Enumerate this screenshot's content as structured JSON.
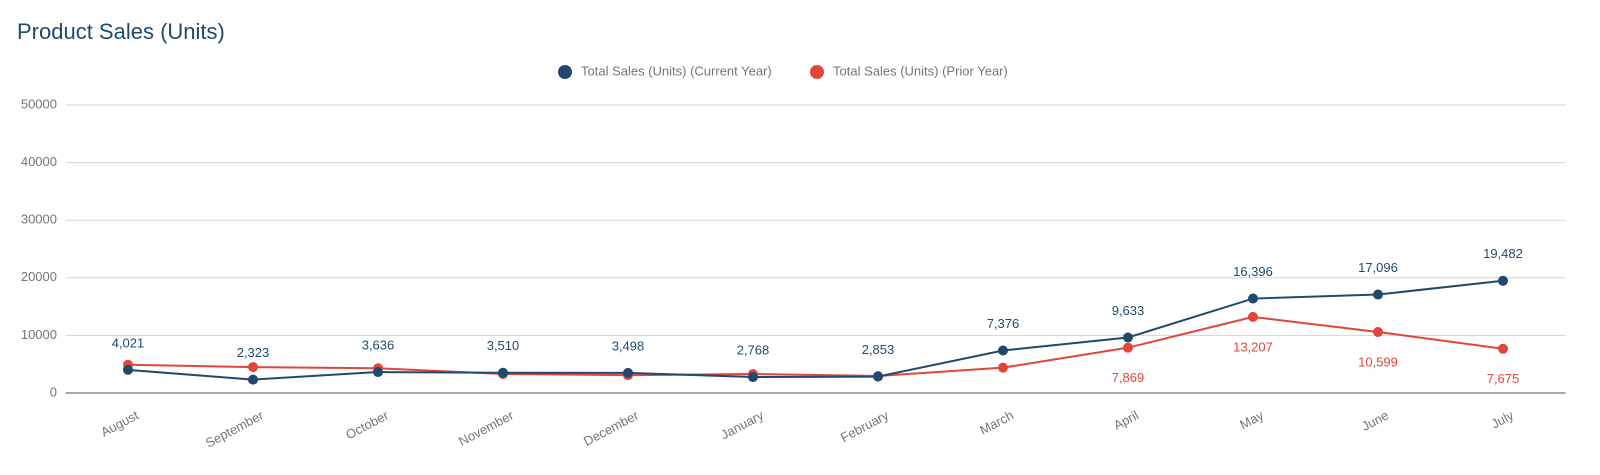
{
  "chart_data": {
    "type": "line",
    "title": "Product Sales (Units)",
    "categories": [
      "August",
      "September",
      "October",
      "November",
      "December",
      "January",
      "February",
      "March",
      "April",
      "May",
      "June",
      "July"
    ],
    "series": [
      {
        "name": "Total Sales (Units) (Current Year)",
        "color": "#1f4a6e",
        "values": [
          4021,
          2323,
          3636,
          3510,
          3498,
          2768,
          2853,
          7376,
          9633,
          16396,
          17096,
          19482
        ],
        "value_labels": [
          "4,021",
          "2,323",
          "3,636",
          "3,510",
          "3,498",
          "2,768",
          "2,853",
          "7,376",
          "9,633",
          "16,396",
          "17,096",
          "19,482"
        ]
      },
      {
        "name": "Total Sales (Units) (Prior Year)",
        "color": "#e0463a",
        "values": [
          4900,
          4500,
          4300,
          3300,
          3100,
          3300,
          2950,
          4400,
          7869,
          13207,
          10599,
          7675
        ],
        "value_labels": [
          null,
          null,
          null,
          null,
          null,
          null,
          null,
          null,
          "7,869",
          "13,207",
          "10,599",
          "7,675"
        ]
      }
    ],
    "ylim": [
      0,
      50000
    ],
    "yticks": [
      0,
      10000,
      20000,
      30000,
      40000,
      50000
    ],
    "grid": true
  }
}
